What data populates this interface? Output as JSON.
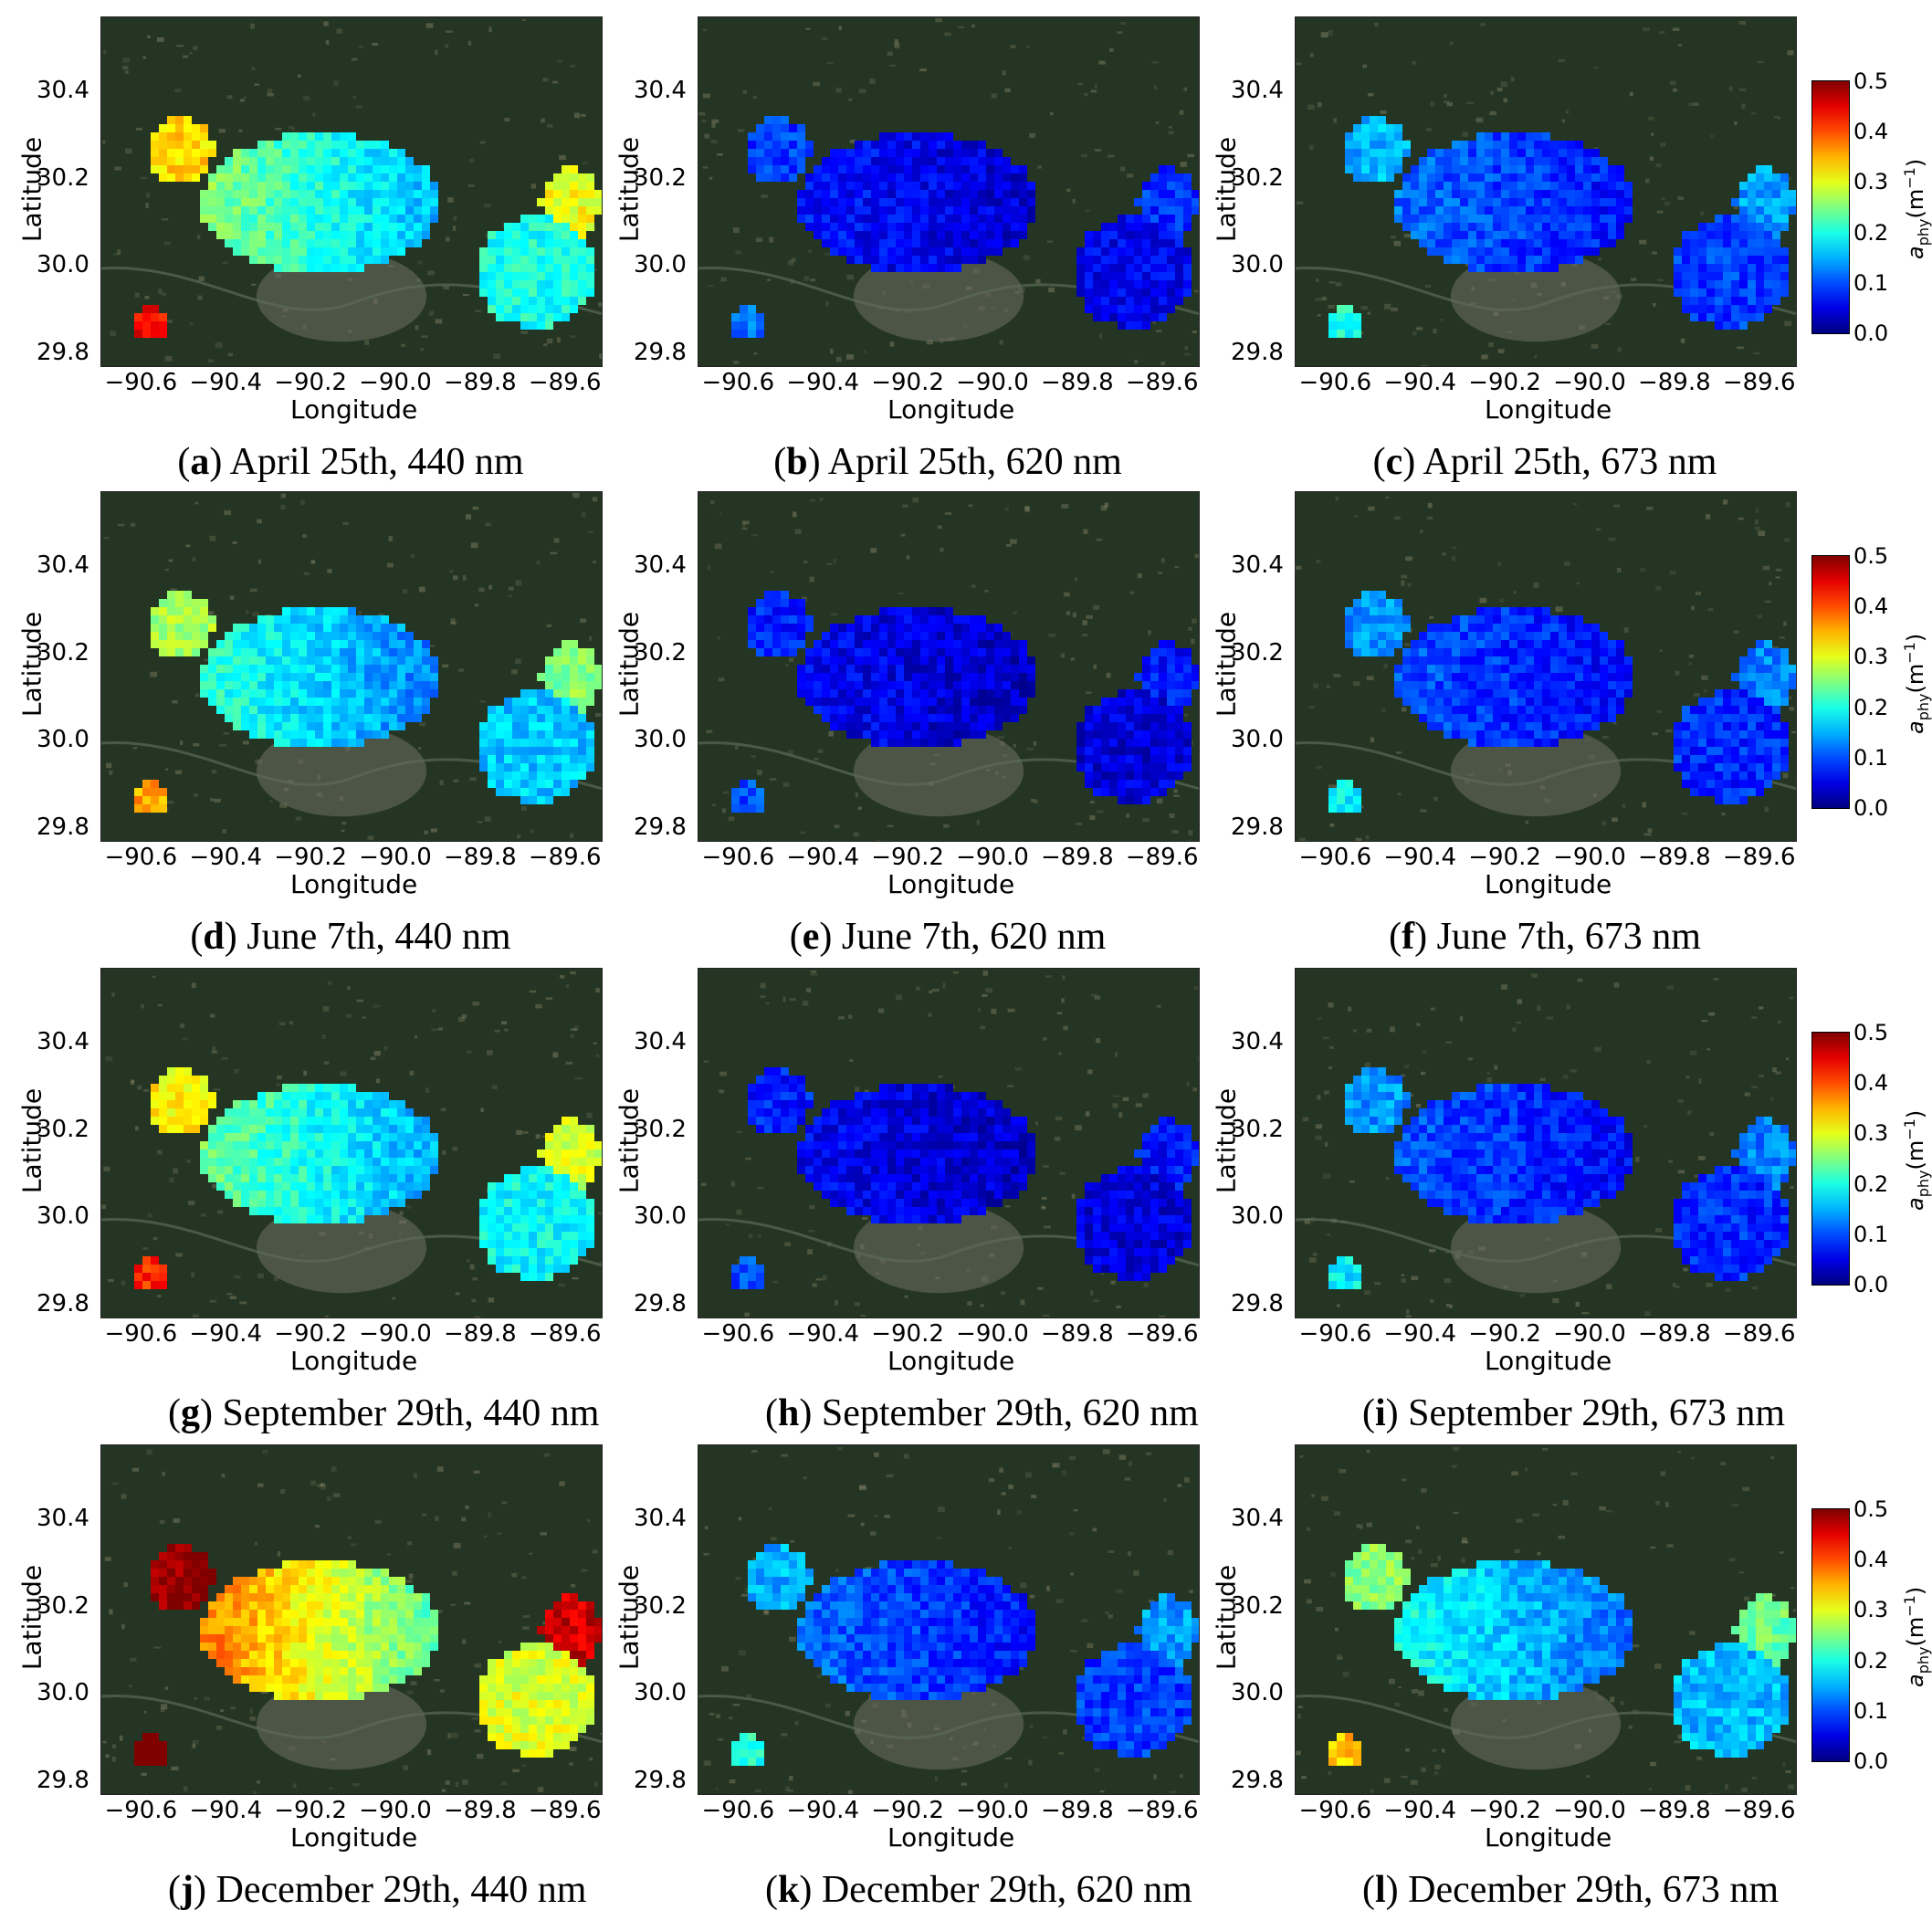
{
  "figure": {
    "x_axis_label": "Longitude",
    "y_axis_label": "Latitude",
    "x_ticks": [
      "−90.6",
      "−90.4",
      "−90.2",
      "−90.0",
      "−89.8",
      "−89.6"
    ],
    "y_ticks": [
      "30.4",
      "30.2",
      "30.0",
      "29.8"
    ],
    "colorbar_ticks": [
      "0.5",
      "0.4",
      "0.3",
      "0.2",
      "0.1",
      "0.0"
    ],
    "colorbar_label": "a_phy(m^-1)",
    "colormap": "jet",
    "colors": {
      "land": "#243623",
      "urban": "#6f6f66",
      "low": "#2a4fc0",
      "mid": "#5ac8e6",
      "high": "#d8231e"
    }
  },
  "panels": [
    {
      "letter": "a",
      "caption": "April 25th, 440 nm",
      "intensity": 0.22
    },
    {
      "letter": "b",
      "caption": "April 25th, 620 nm",
      "intensity": 0.06
    },
    {
      "letter": "c",
      "caption": "April 25th, 673 nm",
      "intensity": 0.1
    },
    {
      "letter": "d",
      "caption": "June 7th, 440 nm",
      "intensity": 0.18
    },
    {
      "letter": "e",
      "caption": "June 7th, 620 nm",
      "intensity": 0.05
    },
    {
      "letter": "f",
      "caption": "June 7th, 673 nm",
      "intensity": 0.09
    },
    {
      "letter": "g",
      "caption": "September 29th, 440 nm",
      "intensity": 0.21
    },
    {
      "letter": "h",
      "caption": "September 29th, 620 nm",
      "intensity": 0.05
    },
    {
      "letter": "i",
      "caption": "September 29th, 673 nm",
      "intensity": 0.09
    },
    {
      "letter": "j",
      "caption": "December 29th, 440 nm",
      "intensity": 0.33
    },
    {
      "letter": "k",
      "caption": "December 29th, 620 nm",
      "intensity": 0.1
    },
    {
      "letter": "l",
      "caption": "December 29th, 673 nm",
      "intensity": 0.17
    }
  ]
}
